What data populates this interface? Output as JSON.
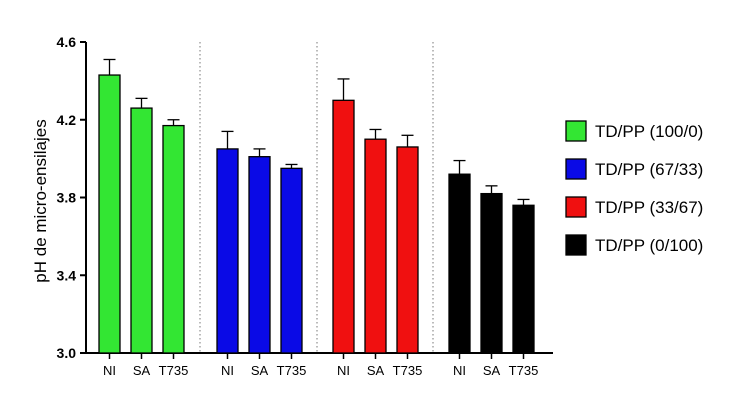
{
  "chart_data": {
    "type": "bar",
    "ylabel": "pH de micro-ensilajes",
    "xlabel": "",
    "title": "",
    "ylim": [
      3.0,
      4.6
    ],
    "yticks": [
      "3.0",
      "3.4",
      "3.8",
      "4.2",
      "4.6"
    ],
    "categories": [
      "NI",
      "SA",
      "T735"
    ],
    "legend_position": "right",
    "grid": false,
    "group_separators": "dotted",
    "series": [
      {
        "name": "TD/PP (100/0)",
        "color": "#33e633",
        "values": [
          4.43,
          4.26,
          4.17
        ],
        "errors": [
          0.08,
          0.05,
          0.03
        ]
      },
      {
        "name": "TD/PP (67/33)",
        "color": "#0a0ae6",
        "values": [
          4.05,
          4.01,
          3.95
        ],
        "errors": [
          0.09,
          0.04,
          0.02
        ]
      },
      {
        "name": "TD/PP (33/67)",
        "color": "#f01010",
        "values": [
          4.3,
          4.1,
          4.06
        ],
        "errors": [
          0.11,
          0.05,
          0.06
        ]
      },
      {
        "name": "TD/PP (0/100)",
        "color": "#000000",
        "values": [
          3.92,
          3.82,
          3.76
        ],
        "errors": [
          0.07,
          0.04,
          0.03
        ]
      }
    ]
  }
}
